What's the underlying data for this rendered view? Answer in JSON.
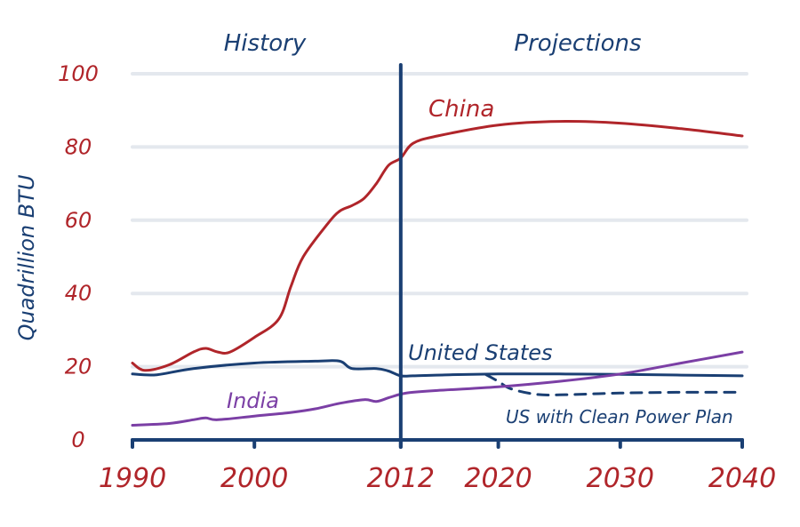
{
  "chart_data": {
    "type": "line",
    "title": "",
    "xlabel": "",
    "ylabel": "Quadrillion BTU",
    "xlim": [
      1990,
      2040
    ],
    "ylim": [
      0,
      100
    ],
    "grid": true,
    "x_ticks": [
      1990,
      2000,
      2012,
      2020,
      2030,
      2040
    ],
    "x_tick_labels": [
      "1990",
      "2000",
      "2012",
      "2020",
      "2030",
      "2040"
    ],
    "y_ticks": [
      0,
      20,
      40,
      60,
      80,
      100
    ],
    "y_tick_labels": [
      "0",
      "20",
      "40",
      "60",
      "80",
      "100"
    ],
    "divider_year": 2012,
    "sections": [
      {
        "label": "History",
        "range": [
          1990,
          2012
        ]
      },
      {
        "label": "Projections",
        "range": [
          2012,
          2040
        ]
      }
    ],
    "series": [
      {
        "name": "China",
        "label": "China",
        "color": "#b0252a",
        "style": "solid",
        "x": [
          1990,
          1991,
          1993,
          1995,
          1996,
          1997,
          1998,
          2000,
          2002,
          2003,
          2004,
          2006,
          2007,
          2008,
          2009,
          2010,
          2011,
          2012,
          2013,
          2015,
          2020,
          2025,
          2030,
          2035,
          2040
        ],
        "values": [
          21,
          19,
          20.5,
          24,
          25,
          24,
          24,
          28,
          33,
          42,
          50,
          59,
          62.5,
          64,
          66,
          70,
          75,
          77,
          81,
          83,
          86,
          87,
          86.5,
          85,
          83
        ]
      },
      {
        "name": "United States",
        "label": "United States",
        "color": "#1a3f73",
        "style": "solid",
        "x": [
          1990,
          1992,
          1995,
          2000,
          2005,
          2007,
          2008,
          2010,
          2011,
          2012,
          2013,
          2016,
          2020,
          2025,
          2030,
          2035,
          2040
        ],
        "values": [
          18,
          17.8,
          19.5,
          21,
          21.5,
          21.5,
          19.5,
          19.5,
          18.8,
          17.5,
          17.5,
          17.8,
          18,
          18,
          17.9,
          17.7,
          17.5
        ]
      },
      {
        "name": "US with Clean Power Plan",
        "label": "US with Clean Power Plan",
        "color": "#1a3f73",
        "style": "dashed",
        "x": [
          2019,
          2020,
          2021,
          2023,
          2025,
          2030,
          2035,
          2040
        ],
        "values": [
          17.8,
          16,
          14,
          12.5,
          12.3,
          12.8,
          13,
          13
        ]
      },
      {
        "name": "India",
        "label": "India",
        "color": "#7b3fa5",
        "style": "solid",
        "x": [
          1990,
          1993,
          1995,
          1996,
          1997,
          2000,
          2003,
          2005,
          2007,
          2009,
          2010,
          2011,
          2012,
          2013,
          2015,
          2020,
          2025,
          2030,
          2035,
          2040
        ],
        "values": [
          4,
          4.5,
          5.5,
          6,
          5.5,
          6.5,
          7.5,
          8.5,
          10,
          11,
          10.5,
          11.5,
          12.5,
          13,
          13.5,
          14.5,
          16,
          18,
          21,
          24
        ]
      }
    ]
  }
}
